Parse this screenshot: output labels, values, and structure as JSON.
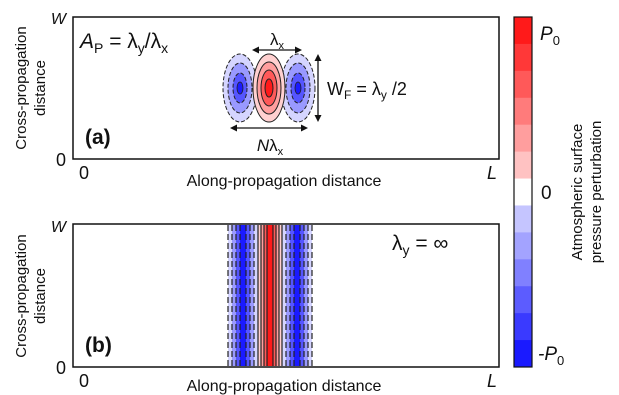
{
  "panel_a": {
    "label": "(a)",
    "ylabel_line1": "Cross-propagation",
    "ylabel_line2": "distance",
    "xlabel": "Along-propagation distance",
    "y_top": "W",
    "y_bottom": "0",
    "x_left": "0",
    "x_right": "L",
    "ap_A": "A",
    "ap_P": "P",
    "ap_eq": " = λ",
    "ap_y": "y",
    "ap_slash": "/λ",
    "ap_x": "x",
    "lambda_x_label": "λ",
    "lambda_x_sub": "x",
    "wf_W": "W",
    "wf_F": "F",
    "wf_eq": " = λ",
    "wf_y": "y",
    "wf_rest": " /2",
    "n_lambda_N": "N",
    "n_lambda_l": "λ",
    "n_lambda_x": "x"
  },
  "panel_b": {
    "label": "(b)",
    "ylabel_line1": "Cross-propagation",
    "ylabel_line2": "distance",
    "xlabel": "Along-propagation distance",
    "y_top": "W",
    "y_bottom": "0",
    "x_left": "0",
    "x_right": "L",
    "ly_l": "λ",
    "ly_y": "y",
    "ly_rest": " = ∞"
  },
  "colorbar": {
    "title_line1": "Atmospheric surface",
    "title_line2": "pressure perturbation",
    "top_label_P": "P",
    "top_label_0": "0",
    "mid_label": "0",
    "bottom_label_minus": "-P",
    "bottom_label_0": "0",
    "colors": [
      "#ff1a1a",
      "#ff3838",
      "#ff5959",
      "#ff7b7b",
      "#ff9e9e",
      "#ffc2c2",
      "#ffffff",
      "#c5c5ff",
      "#a3a3ff",
      "#8080ff",
      "#5c5cff",
      "#3a3aff",
      "#1a1aff"
    ]
  }
}
